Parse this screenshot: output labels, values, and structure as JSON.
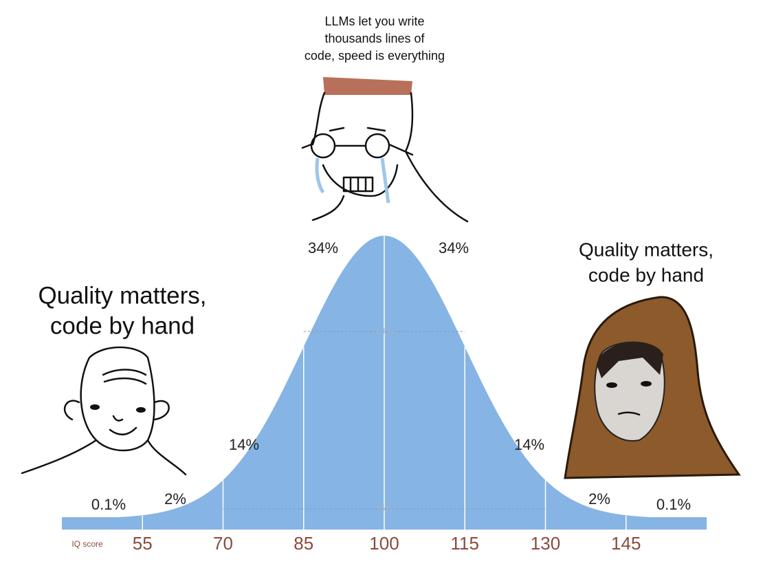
{
  "top_caption": [
    "LLMs let you write",
    "thousands lines of",
    "code, speed is everything"
  ],
  "left_caption": [
    "Quality matters,",
    "code by hand"
  ],
  "right_caption": [
    "Quality matters,",
    "code by hand"
  ],
  "chart_data": {
    "type": "area",
    "x_label": "IQ score",
    "color": "#86b4e4",
    "xlim": [
      40,
      160
    ],
    "xticks": [
      55,
      70,
      85,
      100,
      115,
      130,
      145
    ],
    "segments": {
      "values": [
        0.1,
        2,
        14,
        34,
        34,
        14,
        2,
        0.1
      ],
      "value_labels": [
        "0.1%",
        "2%",
        "14%",
        "34%",
        "34%",
        "14%",
        "2%",
        "0.1%"
      ]
    },
    "bands": {
      "values": [
        68,
        95
      ],
      "value_labels": [
        "68%",
        "95%"
      ]
    }
  }
}
